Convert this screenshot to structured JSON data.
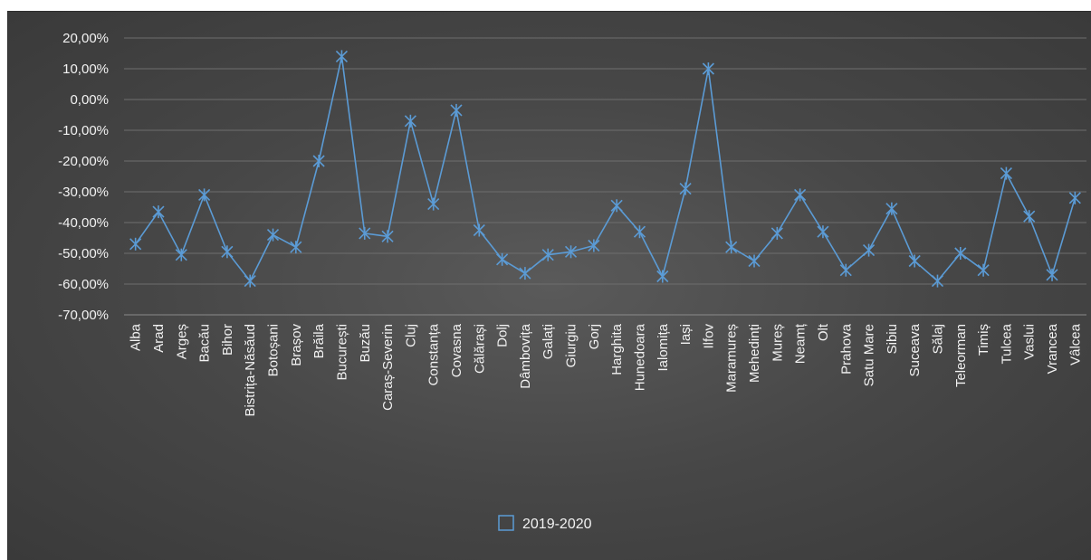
{
  "chart_data": {
    "type": "line",
    "title": "",
    "xlabel": "",
    "ylabel": "",
    "ylim": [
      -0.7,
      0.2
    ],
    "yticks": [
      "20,00%",
      "10,00%",
      "0,00%",
      "-10,00%",
      "-20,00%",
      "-30,00%",
      "-40,00%",
      "-50,00%",
      "-60,00%",
      "-70,00%"
    ],
    "ytick_values": [
      0.2,
      0.1,
      0.0,
      -0.1,
      -0.2,
      -0.3,
      -0.4,
      -0.5,
      -0.6,
      -0.7
    ],
    "grid": true,
    "legend_position": "bottom",
    "categories": [
      "Alba",
      "Arad",
      "Argeș",
      "Bacău",
      "Bihor",
      "Bistrița-Năsăud",
      "Botoșani",
      "Brașov",
      "Brăila",
      "București",
      "Buzău",
      "Caraș-Severin",
      "Cluj",
      "Constanța",
      "Covasna",
      "Călărași",
      "Dolj",
      "Dâmbovița",
      "Galați",
      "Giurgiu",
      "Gorj",
      "Harghita",
      "Hunedoara",
      "Ialomița",
      "Iași",
      "Ilfov",
      "Maramureș",
      "Mehedinți",
      "Mureș",
      "Neamț",
      "Olt",
      "Prahova",
      "Satu Mare",
      "Sibiu",
      "Suceava",
      "Sălaj",
      "Teleorman",
      "Timiș",
      "Tulcea",
      "Vaslui",
      "Vrancea",
      "Vâlcea"
    ],
    "series": [
      {
        "name": "2019-2020",
        "color": "#5b9bd5",
        "values": [
          -0.47,
          -0.365,
          -0.505,
          -0.31,
          -0.495,
          -0.59,
          -0.44,
          -0.48,
          -0.2,
          0.14,
          -0.435,
          -0.445,
          -0.07,
          -0.34,
          -0.035,
          -0.425,
          -0.52,
          -0.565,
          -0.505,
          -0.495,
          -0.475,
          -0.345,
          -0.43,
          -0.575,
          -0.29,
          0.1,
          -0.48,
          -0.525,
          -0.435,
          -0.31,
          -0.43,
          -0.555,
          -0.49,
          -0.355,
          -0.525,
          -0.59,
          -0.5,
          -0.555,
          -0.24,
          -0.38,
          -0.57,
          -0.32
        ]
      }
    ]
  }
}
